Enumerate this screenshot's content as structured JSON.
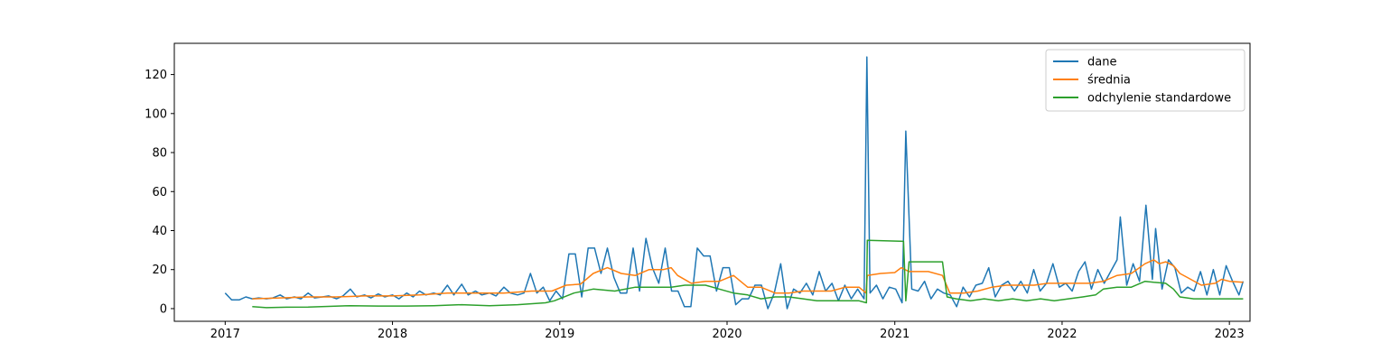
{
  "chart_data": {
    "type": "line",
    "title": "",
    "xlabel": "",
    "ylabel": "",
    "grid": false,
    "legend_position": "top-right",
    "xlim": [
      "2016-09-12",
      "2023-02-15"
    ],
    "ylim": [
      -6.5,
      136
    ],
    "x_ticks": [
      "2017",
      "2018",
      "2019",
      "2020",
      "2021",
      "2022",
      "2023"
    ],
    "y_ticks": [
      0,
      20,
      40,
      60,
      80,
      100,
      120
    ],
    "series": [
      {
        "name": "dane",
        "color": "#1f77b4",
        "points": [
          [
            "2017-01-01",
            8
          ],
          [
            "2017-01-15",
            4.5
          ],
          [
            "2017-02-01",
            4.5
          ],
          [
            "2017-02-15",
            6
          ],
          [
            "2017-03-01",
            5
          ],
          [
            "2017-03-15",
            5.5
          ],
          [
            "2017-04-01",
            5
          ],
          [
            "2017-04-15",
            5.5
          ],
          [
            "2017-05-01",
            7
          ],
          [
            "2017-05-15",
            5
          ],
          [
            "2017-06-01",
            6
          ],
          [
            "2017-06-15",
            5
          ],
          [
            "2017-07-01",
            8
          ],
          [
            "2017-07-15",
            5.5
          ],
          [
            "2017-08-01",
            6
          ],
          [
            "2017-08-15",
            6.5
          ],
          [
            "2017-09-01",
            5
          ],
          [
            "2017-09-15",
            6.5
          ],
          [
            "2017-10-01",
            10
          ],
          [
            "2017-10-15",
            6
          ],
          [
            "2017-11-01",
            7
          ],
          [
            "2017-11-15",
            5.5
          ],
          [
            "2017-12-01",
            7.5
          ],
          [
            "2017-12-15",
            6
          ],
          [
            "2018-01-01",
            7
          ],
          [
            "2018-01-15",
            5
          ],
          [
            "2018-02-01",
            8
          ],
          [
            "2018-02-15",
            6
          ],
          [
            "2018-03-01",
            9
          ],
          [
            "2018-03-15",
            7
          ],
          [
            "2018-04-01",
            8
          ],
          [
            "2018-04-15",
            7
          ],
          [
            "2018-05-01",
            12
          ],
          [
            "2018-05-15",
            7
          ],
          [
            "2018-06-01",
            12.5
          ],
          [
            "2018-06-15",
            7
          ],
          [
            "2018-07-01",
            9
          ],
          [
            "2018-07-15",
            7
          ],
          [
            "2018-08-01",
            8
          ],
          [
            "2018-08-15",
            6.5
          ],
          [
            "2018-09-01",
            11
          ],
          [
            "2018-09-15",
            8
          ],
          [
            "2018-10-01",
            7
          ],
          [
            "2018-10-15",
            8
          ],
          [
            "2018-10-29",
            18
          ],
          [
            "2018-11-12",
            8
          ],
          [
            "2018-11-26",
            11
          ],
          [
            "2018-12-10",
            4
          ],
          [
            "2018-12-24",
            9
          ],
          [
            "2019-01-07",
            5
          ],
          [
            "2019-01-21",
            28
          ],
          [
            "2019-02-04",
            28
          ],
          [
            "2019-02-18",
            6
          ],
          [
            "2019-03-04",
            31
          ],
          [
            "2019-03-18",
            31
          ],
          [
            "2019-04-01",
            18
          ],
          [
            "2019-04-15",
            31
          ],
          [
            "2019-04-29",
            16
          ],
          [
            "2019-05-13",
            8
          ],
          [
            "2019-05-27",
            8
          ],
          [
            "2019-06-10",
            31
          ],
          [
            "2019-06-24",
            9
          ],
          [
            "2019-07-08",
            36
          ],
          [
            "2019-07-22",
            21
          ],
          [
            "2019-08-05",
            13
          ],
          [
            "2019-08-19",
            31
          ],
          [
            "2019-09-02",
            9
          ],
          [
            "2019-09-16",
            9
          ],
          [
            "2019-09-30",
            1
          ],
          [
            "2019-10-14",
            1
          ],
          [
            "2019-10-28",
            31
          ],
          [
            "2019-11-11",
            27
          ],
          [
            "2019-11-25",
            27
          ],
          [
            "2019-12-09",
            9
          ],
          [
            "2019-12-23",
            21
          ],
          [
            "2020-01-06",
            21
          ],
          [
            "2020-01-20",
            2
          ],
          [
            "2020-02-03",
            5
          ],
          [
            "2020-02-17",
            5
          ],
          [
            "2020-03-02",
            12
          ],
          [
            "2020-03-16",
            12
          ],
          [
            "2020-03-30",
            0
          ],
          [
            "2020-04-13",
            8
          ],
          [
            "2020-04-27",
            23
          ],
          [
            "2020-05-11",
            0
          ],
          [
            "2020-05-25",
            10
          ],
          [
            "2020-06-08",
            8
          ],
          [
            "2020-06-22",
            13
          ],
          [
            "2020-07-06",
            7
          ],
          [
            "2020-07-20",
            19
          ],
          [
            "2020-08-03",
            9
          ],
          [
            "2020-08-17",
            13
          ],
          [
            "2020-08-31",
            4
          ],
          [
            "2020-09-14",
            12
          ],
          [
            "2020-09-28",
            5
          ],
          [
            "2020-10-12",
            10
          ],
          [
            "2020-10-26",
            5
          ],
          [
            "2020-11-01",
            129
          ],
          [
            "2020-11-08",
            8
          ],
          [
            "2020-11-22",
            12
          ],
          [
            "2020-12-06",
            5
          ],
          [
            "2020-12-20",
            11
          ],
          [
            "2021-01-03",
            10
          ],
          [
            "2021-01-17",
            3
          ],
          [
            "2021-01-25",
            91
          ],
          [
            "2021-02-07",
            10
          ],
          [
            "2021-02-21",
            9
          ],
          [
            "2021-03-07",
            14
          ],
          [
            "2021-03-21",
            5
          ],
          [
            "2021-04-04",
            10
          ],
          [
            "2021-04-18",
            8
          ],
          [
            "2021-05-02",
            7
          ],
          [
            "2021-05-16",
            1
          ],
          [
            "2021-05-30",
            11
          ],
          [
            "2021-06-13",
            6
          ],
          [
            "2021-06-27",
            12
          ],
          [
            "2021-07-11",
            13
          ],
          [
            "2021-07-25",
            21
          ],
          [
            "2021-08-08",
            6
          ],
          [
            "2021-08-22",
            12
          ],
          [
            "2021-09-05",
            14
          ],
          [
            "2021-09-19",
            9
          ],
          [
            "2021-10-03",
            14
          ],
          [
            "2021-10-17",
            8
          ],
          [
            "2021-10-31",
            20
          ],
          [
            "2021-11-14",
            9
          ],
          [
            "2021-11-28",
            13
          ],
          [
            "2021-12-12",
            23
          ],
          [
            "2021-12-26",
            11
          ],
          [
            "2022-01-09",
            13
          ],
          [
            "2022-01-23",
            9
          ],
          [
            "2022-02-06",
            19
          ],
          [
            "2022-02-20",
            24
          ],
          [
            "2022-03-06",
            10
          ],
          [
            "2022-03-20",
            20
          ],
          [
            "2022-04-03",
            13
          ],
          [
            "2022-04-17",
            19
          ],
          [
            "2022-05-01",
            25
          ],
          [
            "2022-05-08",
            47
          ],
          [
            "2022-05-22",
            12
          ],
          [
            "2022-06-05",
            23
          ],
          [
            "2022-06-19",
            14
          ],
          [
            "2022-07-03",
            53
          ],
          [
            "2022-07-17",
            15
          ],
          [
            "2022-07-24",
            41
          ],
          [
            "2022-08-07",
            10
          ],
          [
            "2022-08-21",
            25
          ],
          [
            "2022-09-04",
            21
          ],
          [
            "2022-09-18",
            8
          ],
          [
            "2022-10-02",
            11
          ],
          [
            "2022-10-16",
            9
          ],
          [
            "2022-10-30",
            19
          ],
          [
            "2022-11-13",
            7
          ],
          [
            "2022-11-27",
            20
          ],
          [
            "2022-12-11",
            7
          ],
          [
            "2022-12-25",
            22
          ],
          [
            "2023-01-08",
            14
          ],
          [
            "2023-01-22",
            7
          ],
          [
            "2023-01-31",
            14
          ]
        ]
      },
      {
        "name": "średnia",
        "color": "#ff7f0e",
        "points": [
          [
            "2017-03-01",
            5
          ],
          [
            "2017-05-01",
            5.5
          ],
          [
            "2017-07-01",
            6
          ],
          [
            "2017-09-01",
            6
          ],
          [
            "2017-11-01",
            6.5
          ],
          [
            "2018-01-01",
            6.5
          ],
          [
            "2018-03-01",
            7
          ],
          [
            "2018-05-01",
            8
          ],
          [
            "2018-07-01",
            8
          ],
          [
            "2018-09-01",
            8
          ],
          [
            "2018-11-01",
            9
          ],
          [
            "2018-12-15",
            9
          ],
          [
            "2019-01-15",
            12
          ],
          [
            "2019-02-15",
            12.5
          ],
          [
            "2019-03-15",
            18
          ],
          [
            "2019-04-15",
            21
          ],
          [
            "2019-05-15",
            18
          ],
          [
            "2019-06-15",
            17
          ],
          [
            "2019-07-15",
            20
          ],
          [
            "2019-08-15",
            20
          ],
          [
            "2019-09-01",
            21
          ],
          [
            "2019-09-15",
            17
          ],
          [
            "2019-10-15",
            13
          ],
          [
            "2019-11-15",
            14
          ],
          [
            "2019-12-15",
            14
          ],
          [
            "2020-01-15",
            17
          ],
          [
            "2020-02-15",
            11
          ],
          [
            "2020-03-15",
            11
          ],
          [
            "2020-04-15",
            8
          ],
          [
            "2020-05-15",
            8
          ],
          [
            "2020-06-15",
            9
          ],
          [
            "2020-07-15",
            9
          ],
          [
            "2020-08-15",
            9
          ],
          [
            "2020-09-15",
            11
          ],
          [
            "2020-10-15",
            11
          ],
          [
            "2020-10-30",
            8
          ],
          [
            "2020-11-02",
            17
          ],
          [
            "2020-12-01",
            18
          ],
          [
            "2021-01-01",
            18.5
          ],
          [
            "2021-01-15",
            21
          ],
          [
            "2021-02-01",
            19
          ],
          [
            "2021-03-01",
            19
          ],
          [
            "2021-03-15",
            19
          ],
          [
            "2021-04-15",
            17
          ],
          [
            "2021-05-01",
            8
          ],
          [
            "2021-06-01",
            8
          ],
          [
            "2021-07-01",
            9
          ],
          [
            "2021-08-01",
            11
          ],
          [
            "2021-09-01",
            12
          ],
          [
            "2021-10-01",
            12
          ],
          [
            "2021-11-01",
            12
          ],
          [
            "2021-12-01",
            13
          ],
          [
            "2022-01-01",
            13
          ],
          [
            "2022-02-01",
            13
          ],
          [
            "2022-03-01",
            13
          ],
          [
            "2022-04-01",
            14
          ],
          [
            "2022-05-01",
            17
          ],
          [
            "2022-06-01",
            18
          ],
          [
            "2022-07-01",
            23
          ],
          [
            "2022-07-20",
            25
          ],
          [
            "2022-08-01",
            23
          ],
          [
            "2022-08-15",
            24
          ],
          [
            "2022-09-01",
            22
          ],
          [
            "2022-09-15",
            18
          ],
          [
            "2022-10-01",
            16
          ],
          [
            "2022-11-01",
            12
          ],
          [
            "2022-12-01",
            13
          ],
          [
            "2022-12-15",
            15
          ],
          [
            "2023-01-01",
            14
          ],
          [
            "2023-01-31",
            13.5
          ]
        ]
      },
      {
        "name": "odchylenie standardowe",
        "color": "#2ca02c",
        "points": [
          [
            "2017-03-01",
            1
          ],
          [
            "2017-04-01",
            0.5
          ],
          [
            "2017-05-15",
            0.7
          ],
          [
            "2017-07-01",
            0.8
          ],
          [
            "2017-10-01",
            1.5
          ],
          [
            "2017-12-01",
            1.3
          ],
          [
            "2018-02-01",
            1.3
          ],
          [
            "2018-04-01",
            1.5
          ],
          [
            "2018-06-01",
            2
          ],
          [
            "2018-08-01",
            1.5
          ],
          [
            "2018-10-01",
            2
          ],
          [
            "2018-12-01",
            3
          ],
          [
            "2018-12-20",
            4
          ],
          [
            "2019-02-01",
            8
          ],
          [
            "2019-03-15",
            10
          ],
          [
            "2019-05-01",
            9
          ],
          [
            "2019-06-15",
            11
          ],
          [
            "2019-07-15",
            11
          ],
          [
            "2019-09-01",
            11
          ],
          [
            "2019-10-01",
            12
          ],
          [
            "2019-11-15",
            12
          ],
          [
            "2019-12-15",
            10
          ],
          [
            "2020-01-15",
            8
          ],
          [
            "2020-02-15",
            7
          ],
          [
            "2020-03-15",
            5
          ],
          [
            "2020-04-15",
            6
          ],
          [
            "2020-05-15",
            6
          ],
          [
            "2020-06-15",
            5
          ],
          [
            "2020-07-15",
            4
          ],
          [
            "2020-08-15",
            4
          ],
          [
            "2020-09-15",
            4
          ],
          [
            "2020-10-15",
            4
          ],
          [
            "2020-10-31",
            3
          ],
          [
            "2020-11-02",
            35
          ],
          [
            "2021-01-20",
            34.5
          ],
          [
            "2021-01-25",
            4
          ],
          [
            "2021-02-01",
            24
          ],
          [
            "2021-03-15",
            24
          ],
          [
            "2021-04-15",
            24
          ],
          [
            "2021-04-25",
            6
          ],
          [
            "2021-05-15",
            5
          ],
          [
            "2021-06-15",
            4
          ],
          [
            "2021-07-15",
            5
          ],
          [
            "2021-08-15",
            4
          ],
          [
            "2021-09-15",
            5
          ],
          [
            "2021-10-15",
            4
          ],
          [
            "2021-11-15",
            5
          ],
          [
            "2021-12-15",
            4
          ],
          [
            "2022-01-15",
            5
          ],
          [
            "2022-02-15",
            6
          ],
          [
            "2022-03-15",
            7
          ],
          [
            "2022-04-01",
            10
          ],
          [
            "2022-05-01",
            11
          ],
          [
            "2022-06-01",
            11
          ],
          [
            "2022-07-01",
            14
          ],
          [
            "2022-07-20",
            13.5
          ],
          [
            "2022-08-15",
            13
          ],
          [
            "2022-09-01",
            10
          ],
          [
            "2022-09-15",
            6
          ],
          [
            "2022-10-15",
            5
          ],
          [
            "2022-11-15",
            5
          ],
          [
            "2022-12-15",
            5
          ],
          [
            "2023-01-31",
            5
          ]
        ]
      }
    ]
  }
}
